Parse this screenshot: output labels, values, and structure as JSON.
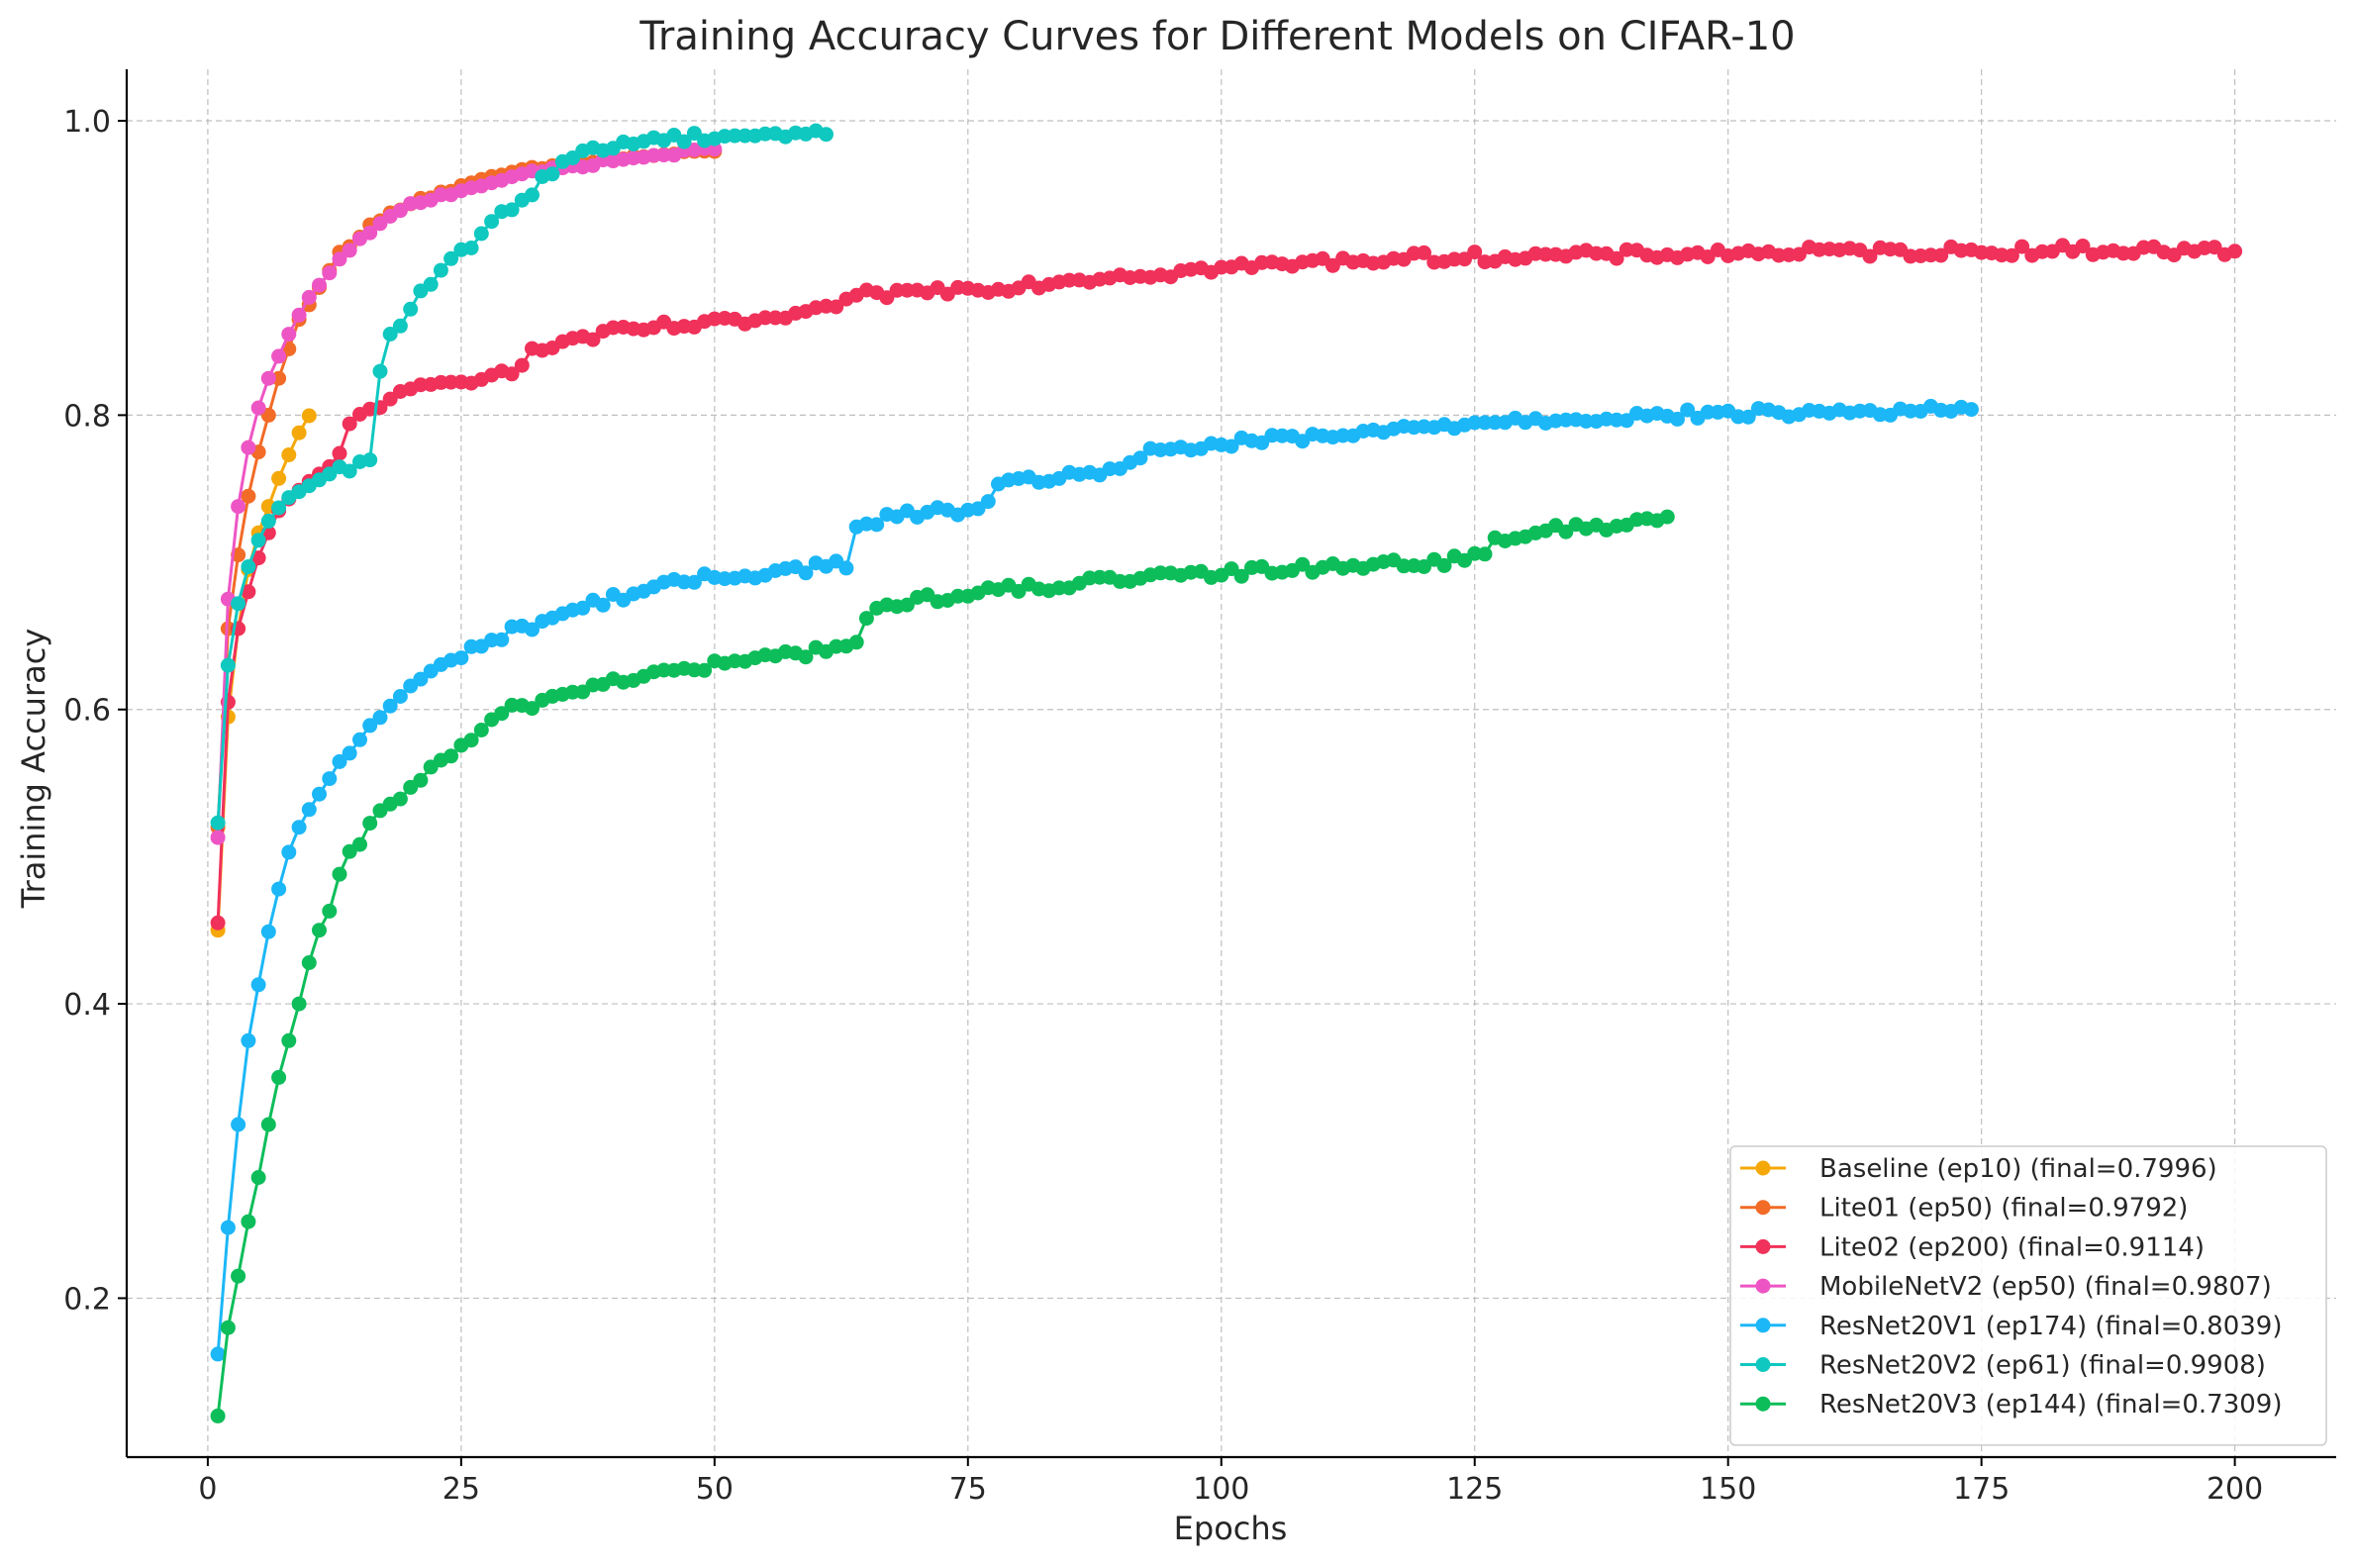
{
  "chart_data": {
    "type": "line",
    "title": "Training Accuracy Curves for Different Models on CIFAR-10",
    "xlabel": "Epochs",
    "ylabel": "Training Accuracy",
    "xlim": [
      -8,
      210
    ],
    "ylim": [
      0.092,
      1.035
    ],
    "xticks": [
      0,
      25,
      50,
      75,
      100,
      125,
      150,
      175,
      200
    ],
    "xtick_labels": [
      "0",
      "25",
      "50",
      "75",
      "100",
      "125",
      "150",
      "175",
      "200"
    ],
    "yticks": [
      0.2,
      0.4,
      0.6,
      0.8,
      1.0
    ],
    "ytick_labels": [
      "0.2",
      "0.4",
      "0.6",
      "0.8",
      "1.0"
    ],
    "grid": true,
    "grid_style": "dashed",
    "legend_position": "lower-right",
    "series": [
      {
        "name": "Baseline (ep10) (final=0.7996)",
        "color": "#F5A80A",
        "anchors": [
          [
            1,
            0.45
          ],
          [
            2,
            0.595
          ],
          [
            3,
            0.655
          ],
          [
            4,
            0.695
          ],
          [
            5,
            0.72
          ],
          [
            6,
            0.738
          ],
          [
            7,
            0.757
          ],
          [
            8,
            0.773
          ],
          [
            9,
            0.788
          ],
          [
            10,
            0.7996
          ]
        ]
      },
      {
        "name": "Lite01 (ep50) (final=0.9792)",
        "color": "#F26B27",
        "anchors": [
          [
            1,
            0.52
          ],
          [
            2,
            0.655
          ],
          [
            3,
            0.705
          ],
          [
            4,
            0.745
          ],
          [
            5,
            0.775
          ],
          [
            6,
            0.8
          ],
          [
            7,
            0.825
          ],
          [
            8,
            0.845
          ],
          [
            9,
            0.865
          ],
          [
            10,
            0.875
          ],
          [
            13,
            0.91
          ],
          [
            16,
            0.928
          ],
          [
            20,
            0.945
          ],
          [
            25,
            0.955
          ],
          [
            30,
            0.965
          ],
          [
            35,
            0.97
          ],
          [
            40,
            0.974
          ],
          [
            45,
            0.977
          ],
          [
            50,
            0.9792
          ]
        ]
      },
      {
        "name": "Lite02 (ep200) (final=0.9114)",
        "color": "#F0315A",
        "anchors": [
          [
            1,
            0.455
          ],
          [
            2,
            0.605
          ],
          [
            3,
            0.655
          ],
          [
            4,
            0.68
          ],
          [
            5,
            0.703
          ],
          [
            6,
            0.72
          ],
          [
            7,
            0.735
          ],
          [
            8,
            0.743
          ],
          [
            10,
            0.755
          ],
          [
            12,
            0.765
          ],
          [
            13,
            0.772
          ],
          [
            14,
            0.792
          ],
          [
            15,
            0.8
          ],
          [
            18,
            0.812
          ],
          [
            20,
            0.815
          ],
          [
            22,
            0.82
          ],
          [
            25,
            0.822
          ],
          [
            28,
            0.83
          ],
          [
            31,
            0.832
          ],
          [
            32,
            0.842
          ],
          [
            35,
            0.85
          ],
          [
            40,
            0.856
          ],
          [
            45,
            0.86
          ],
          [
            50,
            0.862
          ],
          [
            55,
            0.865
          ],
          [
            59,
            0.867
          ],
          [
            62,
            0.876
          ],
          [
            64,
            0.878
          ],
          [
            65,
            0.882
          ],
          [
            70,
            0.884
          ],
          [
            75,
            0.886
          ],
          [
            80,
            0.888
          ],
          [
            85,
            0.892
          ],
          [
            90,
            0.895
          ],
          [
            95,
            0.897
          ],
          [
            100,
            0.9
          ],
          [
            105,
            0.902
          ],
          [
            110,
            0.904
          ],
          [
            115,
            0.906
          ],
          [
            120,
            0.907
          ],
          [
            130,
            0.908
          ],
          [
            140,
            0.909
          ],
          [
            150,
            0.91
          ],
          [
            160,
            0.911
          ],
          [
            170,
            0.911
          ],
          [
            180,
            0.912
          ],
          [
            190,
            0.912
          ],
          [
            200,
            0.9114
          ]
        ]
      },
      {
        "name": "MobileNetV2 (ep50) (final=0.9807)",
        "color": "#EE55C4",
        "anchors": [
          [
            1,
            0.513
          ],
          [
            2,
            0.675
          ],
          [
            3,
            0.738
          ],
          [
            4,
            0.778
          ],
          [
            5,
            0.805
          ],
          [
            6,
            0.825
          ],
          [
            7,
            0.84
          ],
          [
            8,
            0.855
          ],
          [
            9,
            0.868
          ],
          [
            10,
            0.88
          ],
          [
            13,
            0.905
          ],
          [
            16,
            0.925
          ],
          [
            20,
            0.943
          ],
          [
            25,
            0.953
          ],
          [
            30,
            0.962
          ],
          [
            35,
            0.968
          ],
          [
            40,
            0.973
          ],
          [
            45,
            0.977
          ],
          [
            50,
            0.9807
          ]
        ]
      },
      {
        "name": "ResNet20V1 (ep174) (final=0.8039)",
        "color": "#1CB7F7",
        "anchors": [
          [
            1,
            0.162
          ],
          [
            2,
            0.248
          ],
          [
            3,
            0.318
          ],
          [
            4,
            0.375
          ],
          [
            5,
            0.413
          ],
          [
            6,
            0.449
          ],
          [
            7,
            0.478
          ],
          [
            8,
            0.503
          ],
          [
            9,
            0.52
          ],
          [
            10,
            0.532
          ],
          [
            12,
            0.553
          ],
          [
            15,
            0.58
          ],
          [
            18,
            0.603
          ],
          [
            20,
            0.615
          ],
          [
            25,
            0.638
          ],
          [
            30,
            0.653
          ],
          [
            35,
            0.665
          ],
          [
            40,
            0.676
          ],
          [
            45,
            0.684
          ],
          [
            50,
            0.69
          ],
          [
            55,
            0.693
          ],
          [
            60,
            0.697
          ],
          [
            63,
            0.699
          ],
          [
            64,
            0.722
          ],
          [
            67,
            0.73
          ],
          [
            70,
            0.733
          ],
          [
            75,
            0.736
          ],
          [
            77,
            0.738
          ],
          [
            78,
            0.75
          ],
          [
            80,
            0.755
          ],
          [
            85,
            0.759
          ],
          [
            90,
            0.764
          ],
          [
            92,
            0.768
          ],
          [
            93,
            0.774
          ],
          [
            95,
            0.777
          ],
          [
            100,
            0.78
          ],
          [
            105,
            0.783
          ],
          [
            110,
            0.785
          ],
          [
            115,
            0.788
          ],
          [
            120,
            0.792
          ],
          [
            125,
            0.795
          ],
          [
            130,
            0.797
          ],
          [
            140,
            0.799
          ],
          [
            150,
            0.801
          ],
          [
            160,
            0.802
          ],
          [
            170,
            0.803
          ],
          [
            174,
            0.8039
          ]
        ]
      },
      {
        "name": "ResNet20V2 (ep61) (final=0.9908)",
        "color": "#0FC8C0",
        "anchors": [
          [
            1,
            0.523
          ],
          [
            2,
            0.63
          ],
          [
            3,
            0.672
          ],
          [
            4,
            0.697
          ],
          [
            5,
            0.715
          ],
          [
            6,
            0.728
          ],
          [
            7,
            0.737
          ],
          [
            8,
            0.744
          ],
          [
            10,
            0.752
          ],
          [
            12,
            0.76
          ],
          [
            15,
            0.766
          ],
          [
            16,
            0.771
          ],
          [
            17,
            0.833
          ],
          [
            18,
            0.852
          ],
          [
            20,
            0.872
          ],
          [
            22,
            0.89
          ],
          [
            25,
            0.91
          ],
          [
            28,
            0.93
          ],
          [
            31,
            0.945
          ],
          [
            32,
            0.953
          ],
          [
            33,
            0.962
          ],
          [
            35,
            0.972
          ],
          [
            38,
            0.98
          ],
          [
            41,
            0.985
          ],
          [
            45,
            0.988
          ],
          [
            50,
            0.99
          ],
          [
            55,
            0.991
          ],
          [
            61,
            0.9908
          ]
        ]
      },
      {
        "name": "ResNet20V3 (ep144) (final=0.7309)",
        "color": "#0DBD5A",
        "anchors": [
          [
            1,
            0.12
          ],
          [
            2,
            0.18
          ],
          [
            3,
            0.215
          ],
          [
            4,
            0.252
          ],
          [
            5,
            0.282
          ],
          [
            6,
            0.318
          ],
          [
            7,
            0.35
          ],
          [
            8,
            0.375
          ],
          [
            9,
            0.4
          ],
          [
            10,
            0.428
          ],
          [
            11,
            0.45
          ],
          [
            12,
            0.463
          ],
          [
            13,
            0.485
          ],
          [
            14,
            0.5
          ],
          [
            15,
            0.51
          ],
          [
            17,
            0.53
          ],
          [
            20,
            0.548
          ],
          [
            22,
            0.558
          ],
          [
            25,
            0.575
          ],
          [
            28,
            0.59
          ],
          [
            30,
            0.6
          ],
          [
            35,
            0.61
          ],
          [
            40,
            0.62
          ],
          [
            45,
            0.625
          ],
          [
            50,
            0.63
          ],
          [
            55,
            0.635
          ],
          [
            60,
            0.64
          ],
          [
            64,
            0.645
          ],
          [
            65,
            0.662
          ],
          [
            67,
            0.67
          ],
          [
            70,
            0.675
          ],
          [
            75,
            0.678
          ],
          [
            80,
            0.682
          ],
          [
            85,
            0.685
          ],
          [
            90,
            0.688
          ],
          [
            95,
            0.69
          ],
          [
            100,
            0.692
          ],
          [
            105,
            0.695
          ],
          [
            110,
            0.697
          ],
          [
            115,
            0.699
          ],
          [
            120,
            0.7
          ],
          [
            126,
            0.703
          ],
          [
            127,
            0.715
          ],
          [
            130,
            0.72
          ],
          [
            135,
            0.723
          ],
          [
            140,
            0.727
          ],
          [
            144,
            0.7309
          ]
        ]
      }
    ]
  }
}
